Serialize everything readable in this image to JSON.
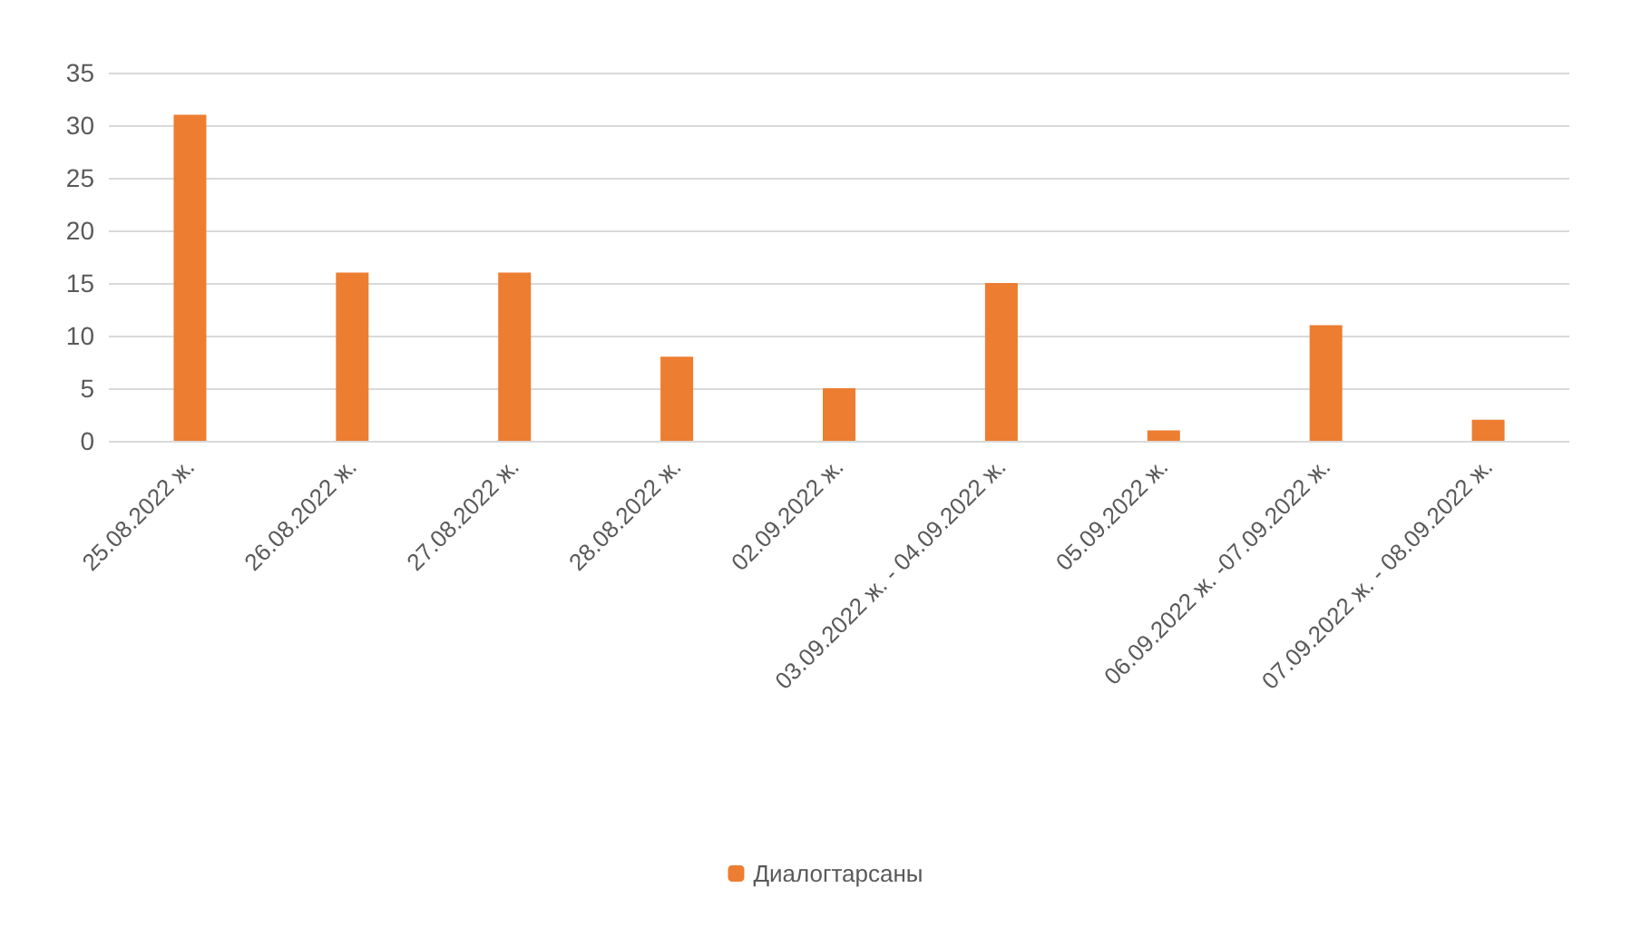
{
  "chart_data": {
    "type": "bar",
    "categories": [
      "25.08.2022 ж.",
      "26.08.2022 ж.",
      "27.08.2022 ж.",
      "28.08.2022 ж.",
      "02.09.2022 ж.",
      "03.09.2022 ж. - 04.09.2022 ж.",
      "05.09.2022 ж.",
      "06.09.2022 ж. -07.09.2022 ж.",
      "07.09.2022 ж. - 08.09.2022 ж."
    ],
    "series": [
      {
        "name": "Диалогтарсаны",
        "color": "#ed7d31",
        "values": [
          31,
          16,
          16,
          8,
          5,
          15,
          1,
          11,
          2
        ]
      }
    ],
    "ylim": [
      0,
      35
    ],
    "yticks": [
      0,
      5,
      10,
      15,
      20,
      25,
      30,
      35
    ],
    "grid": "y",
    "legend": "bottom"
  }
}
